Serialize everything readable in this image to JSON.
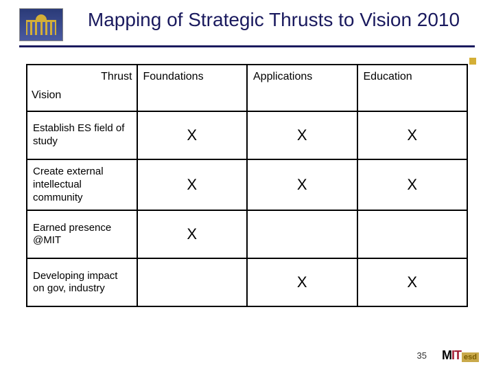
{
  "title": "Mapping of Strategic Thrusts to Vision 2010",
  "table": {
    "corner_top": "Thrust",
    "corner_bottom": "Vision",
    "columns": [
      "Foundations",
      "Applications",
      "Education"
    ],
    "rows": [
      {
        "label": "Establish ES field of study",
        "marks": [
          "X",
          "X",
          "X"
        ]
      },
      {
        "label": "Create external intellectual community",
        "marks": [
          "X",
          "X",
          "X"
        ]
      },
      {
        "label": "Earned presence @MIT",
        "marks": [
          "X",
          "",
          ""
        ]
      },
      {
        "label": "Developing impact on gov, industry",
        "marks": [
          "",
          "X",
          "X"
        ]
      }
    ],
    "border_color": "#000000",
    "mark_fontsize": 22,
    "label_fontsize": 15,
    "header_fontsize": 16
  },
  "style": {
    "title_color": "#1a1a5e",
    "title_fontsize": 28,
    "divider_color": "#1a1a5e",
    "accent_color": "#d4af37",
    "background_color": "#ffffff"
  },
  "footer": {
    "page_number": "35",
    "logo_text": {
      "m": "M",
      "i": "I",
      "t": "T",
      "esd": "esd"
    }
  }
}
